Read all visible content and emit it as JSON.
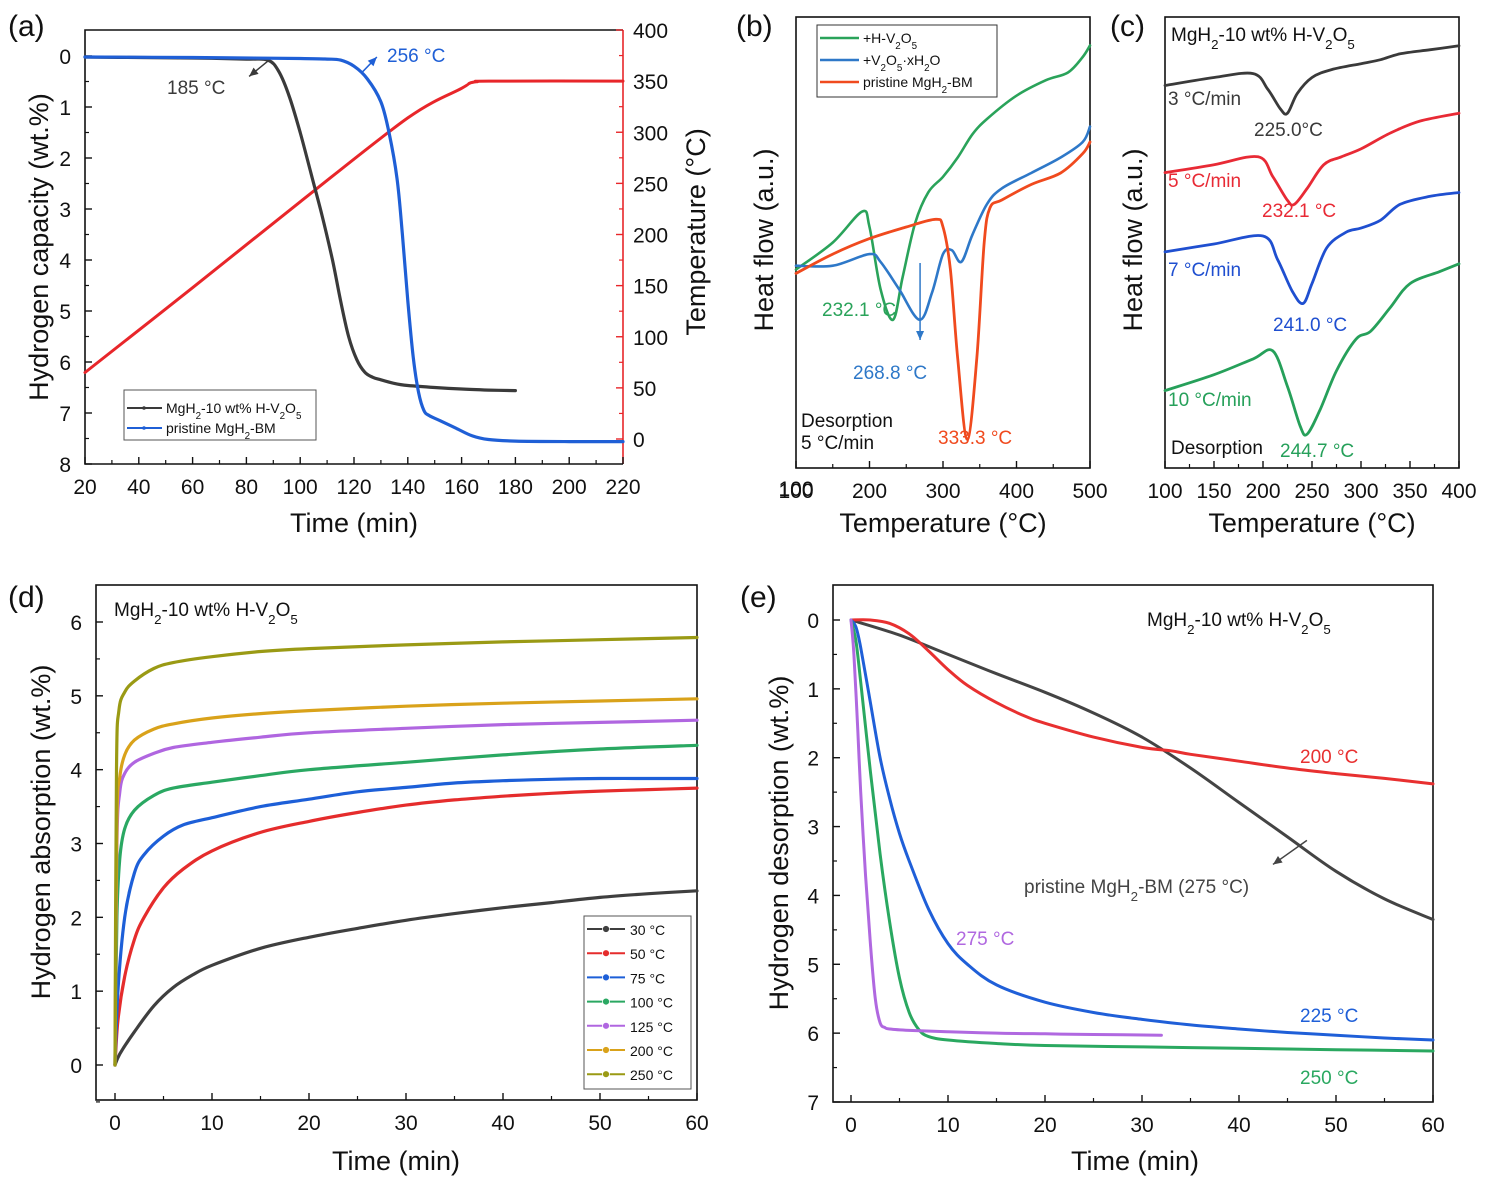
{
  "chart_data": [
    {
      "id": "a",
      "panel_label": "(a)",
      "type": "line",
      "xlabel": "Time (min)",
      "ylabel": "Hydrogen capacity (wt.%)",
      "y2label": "Temperature (°C)",
      "xlim": [
        20,
        220
      ],
      "ylim": [
        8,
        0
      ],
      "y_inverted": true,
      "y2lim": [
        0,
        400
      ],
      "xticks": [
        20,
        40,
        60,
        80,
        100,
        120,
        140,
        160,
        180,
        200,
        220
      ],
      "yticks": [
        0,
        1,
        2,
        3,
        4,
        5,
        6,
        7,
        8
      ],
      "y2ticks": [
        0,
        50,
        100,
        150,
        200,
        250,
        300,
        350,
        400
      ],
      "legend_position": "bottom-left",
      "series": [
        {
          "name": "MgH₂-10 wt% H-V₂O₅",
          "legend_main": "MgH",
          "legend_tail": "-10 wt% H-V",
          "color": "#3a3a3a",
          "axis": "left",
          "x": [
            20,
            40,
            60,
            80,
            88,
            92,
            96,
            100,
            104,
            108,
            112,
            115,
            118,
            121,
            124,
            127,
            130,
            135,
            140,
            150,
            160,
            170,
            180
          ],
          "y": [
            0.02,
            0.03,
            0.04,
            0.06,
            0.08,
            0.3,
            0.8,
            1.5,
            2.3,
            3.1,
            4.0,
            4.8,
            5.5,
            5.95,
            6.2,
            6.3,
            6.35,
            6.42,
            6.46,
            6.5,
            6.53,
            6.55,
            6.56
          ]
        },
        {
          "name": "pristine MgH₂-BM",
          "color": "#1f5fd6",
          "axis": "left",
          "x": [
            20,
            60,
            100,
            110,
            115,
            120,
            125,
            130,
            133,
            136,
            138,
            140,
            142,
            144,
            146,
            148,
            152,
            158,
            164,
            170,
            180,
            200,
            220
          ],
          "y": [
            0.02,
            0.03,
            0.05,
            0.06,
            0.08,
            0.2,
            0.45,
            0.9,
            1.5,
            2.4,
            3.5,
            4.8,
            5.9,
            6.6,
            6.95,
            7.05,
            7.15,
            7.3,
            7.45,
            7.52,
            7.55,
            7.56,
            7.56
          ]
        },
        {
          "name": "Temperature",
          "color": "#e8262a",
          "axis": "right",
          "x": [
            20,
            60,
            100,
            140,
            160,
            163,
            166,
            170,
            220
          ],
          "y": [
            65,
            148,
            232,
            314,
            343,
            348,
            349.5,
            350,
            350
          ]
        }
      ],
      "annotations": [
        {
          "text": "185 °C",
          "color": "#3a3a3a",
          "at": [
            88,
            0.08
          ]
        },
        {
          "text": "256 °C",
          "color": "#1f5fd6",
          "at": [
            122,
            0.25
          ]
        }
      ]
    },
    {
      "id": "b",
      "panel_label": "(b)",
      "type": "line",
      "xlabel": "Temperature (°C)",
      "ylabel": "Heat flow (a.u.)",
      "xlim": [
        100,
        500
      ],
      "xticks": [
        100,
        200,
        300,
        400,
        500
      ],
      "yticks": [],
      "legend_position": "top-left",
      "note_lines": [
        "Desorption",
        "5 °C/min"
      ],
      "series": [
        {
          "name": "+H-V₂O₅",
          "color": "#2aa35a",
          "x": [
            100,
            150,
            190,
            200,
            215,
            232,
            245,
            262,
            280,
            300,
            320,
            340,
            360,
            400,
            440,
            470,
            490,
            500
          ],
          "y": [
            48,
            55,
            63,
            59,
            43,
            35,
            46,
            60,
            68,
            72,
            77,
            83,
            87,
            93,
            97,
            99,
            103,
            106
          ]
        },
        {
          "name": "+V₂O₅·xH₂O",
          "color": "#2e78c8",
          "x": [
            100,
            150,
            200,
            215,
            240,
            268,
            285,
            300,
            312,
            325,
            340,
            360,
            380,
            420,
            460,
            490,
            500
          ],
          "y": [
            49,
            49,
            52,
            50,
            43,
            35,
            42,
            52,
            53,
            50,
            57,
            65,
            69,
            73,
            77,
            81,
            85
          ]
        },
        {
          "name": "pristine MgH₂-BM",
          "color": "#f04a1e",
          "x": [
            100,
            150,
            200,
            250,
            290,
            300,
            310,
            320,
            333,
            346,
            356,
            364,
            380,
            420,
            460,
            490,
            500
          ],
          "y": [
            47,
            52,
            56,
            59,
            61,
            59,
            48,
            25,
            4,
            25,
            55,
            64,
            66,
            70,
            73,
            78,
            81
          ]
        }
      ],
      "annotations": [
        {
          "text": "232.1 °C",
          "color": "#2aa35a"
        },
        {
          "text": "268.8 °C",
          "color": "#2e78c8"
        },
        {
          "text": "333.3 °C",
          "color": "#f04a1e"
        }
      ]
    },
    {
      "id": "c",
      "panel_label": "(c)",
      "type": "line",
      "title": "MgH₂-10 wt% H-V₂O₅",
      "xlabel": "Temperature (°C)",
      "ylabel": "Heat flow (a.u.)",
      "xlim": [
        100,
        400
      ],
      "xticks": [
        100,
        150,
        200,
        250,
        300,
        350,
        400
      ],
      "yticks": [],
      "note_lines": [
        "Desorption"
      ],
      "series": [
        {
          "name": "3 °C/min",
          "color": "#3a3a3a",
          "peak_label": "225.0°C",
          "x": [
            100,
            150,
            190,
            205,
            218,
            225,
            235,
            250,
            270,
            300,
            320,
            340,
            370,
            400
          ],
          "y": [
            92,
            94,
            95,
            91,
            86,
            85,
            90,
            94,
            96,
            97.5,
            98.5,
            100,
            101,
            102
          ]
        },
        {
          "name": "5 °C/min",
          "color": "#e82a35",
          "peak_label": "232.1 °C",
          "x": [
            100,
            150,
            195,
            210,
            225,
            232,
            245,
            262,
            280,
            300,
            330,
            360,
            400
          ],
          "y": [
            70,
            72,
            74,
            69,
            63,
            62,
            66,
            72,
            74,
            76,
            80,
            83,
            85
          ]
        },
        {
          "name": "7 °C/min",
          "color": "#1f4fd0",
          "peak_label": "241.0 °C",
          "x": [
            100,
            150,
            200,
            215,
            230,
            241,
            250,
            265,
            285,
            300,
            320,
            340,
            370,
            400
          ],
          "y": [
            50,
            52,
            54,
            48,
            40,
            37,
            42,
            51,
            55,
            56,
            58,
            62,
            64,
            65
          ]
        },
        {
          "name": "10 °C/min",
          "color": "#26a05a",
          "peak_label": "244.7 °C",
          "x": [
            100,
            150,
            190,
            210,
            225,
            238,
            245,
            258,
            275,
            295,
            310,
            330,
            350,
            380,
            400
          ],
          "y": [
            15,
            19,
            23,
            25,
            16,
            6,
            4,
            10,
            20,
            28,
            30,
            36,
            42,
            45,
            47
          ]
        }
      ]
    },
    {
      "id": "d",
      "panel_label": "(d)",
      "type": "line",
      "title": "MgH₂-10 wt% H-V₂O₅",
      "xlabel": "Time (min)",
      "ylabel": "Hydrogen absorption (wt.%)",
      "xlim": [
        -2,
        60
      ],
      "ylim": [
        -0.5,
        6.5
      ],
      "xticks": [
        0,
        10,
        20,
        30,
        40,
        50,
        60
      ],
      "yticks": [
        0,
        1,
        2,
        3,
        4,
        5,
        6
      ],
      "legend_position": "bottom-right",
      "series": [
        {
          "name": "30 °C",
          "color": "#3f3f3f",
          "x": [
            0,
            0.5,
            2,
            4,
            6,
            8,
            10,
            15,
            20,
            25,
            30,
            35,
            40,
            45,
            50,
            55,
            60
          ],
          "y": [
            0,
            0.15,
            0.45,
            0.8,
            1.05,
            1.22,
            1.35,
            1.58,
            1.73,
            1.85,
            1.96,
            2.05,
            2.13,
            2.2,
            2.27,
            2.32,
            2.36
          ]
        },
        {
          "name": "50 °C",
          "color": "#e52c2c",
          "x": [
            0,
            0.3,
            1,
            2,
            3,
            5,
            7,
            10,
            15,
            20,
            25,
            30,
            35,
            40,
            45,
            50,
            55,
            60
          ],
          "y": [
            0,
            0.6,
            1.2,
            1.7,
            2.0,
            2.4,
            2.65,
            2.9,
            3.15,
            3.3,
            3.42,
            3.52,
            3.59,
            3.64,
            3.68,
            3.71,
            3.73,
            3.75
          ]
        },
        {
          "name": "75 °C",
          "color": "#1d5fd8",
          "x": [
            0,
            0.3,
            1,
            2,
            3,
            5,
            7,
            10,
            15,
            20,
            25,
            30,
            35,
            40,
            45,
            50,
            55,
            60
          ],
          "y": [
            0,
            1.0,
            2.0,
            2.6,
            2.85,
            3.1,
            3.25,
            3.35,
            3.5,
            3.6,
            3.7,
            3.76,
            3.82,
            3.85,
            3.87,
            3.88,
            3.88,
            3.88
          ]
        },
        {
          "name": "100 °C",
          "color": "#2aa862",
          "x": [
            0,
            0.2,
            0.5,
            1,
            2,
            4,
            6,
            10,
            15,
            20,
            30,
            40,
            50,
            60
          ],
          "y": [
            0,
            2.0,
            2.8,
            3.2,
            3.45,
            3.65,
            3.75,
            3.83,
            3.92,
            4.0,
            4.1,
            4.2,
            4.28,
            4.33
          ]
        },
        {
          "name": "125 °C",
          "color": "#b066e0",
          "x": [
            0,
            0.2,
            0.5,
            1,
            2,
            4,
            6,
            10,
            15,
            20,
            30,
            40,
            50,
            60
          ],
          "y": [
            0,
            3.0,
            3.7,
            3.95,
            4.1,
            4.22,
            4.3,
            4.37,
            4.44,
            4.5,
            4.56,
            4.61,
            4.64,
            4.67
          ]
        },
        {
          "name": "200 °C",
          "color": "#d9a21a",
          "x": [
            0,
            0.2,
            0.5,
            1,
            2,
            4,
            6,
            10,
            15,
            20,
            30,
            40,
            50,
            60
          ],
          "y": [
            0,
            3.3,
            3.9,
            4.2,
            4.4,
            4.55,
            4.62,
            4.7,
            4.76,
            4.8,
            4.86,
            4.9,
            4.93,
            4.96
          ]
        },
        {
          "name": "250 °C",
          "color": "#9a9a14",
          "x": [
            0,
            0.15,
            0.4,
            1,
            2,
            4,
            6,
            10,
            15,
            20,
            30,
            40,
            50,
            60
          ],
          "y": [
            0,
            4.0,
            4.8,
            5.05,
            5.2,
            5.37,
            5.45,
            5.53,
            5.6,
            5.64,
            5.69,
            5.73,
            5.76,
            5.79
          ]
        }
      ]
    },
    {
      "id": "e",
      "panel_label": "(e)",
      "type": "line",
      "title": "MgH₂-10 wt% H-V₂O₅",
      "xlabel": "Time (min)",
      "ylabel": "Hydrogen desorption (wt.%)",
      "xlim": [
        -2,
        60
      ],
      "ylim": [
        7,
        -0.5
      ],
      "y_inverted": true,
      "xticks": [
        0,
        10,
        20,
        30,
        40,
        50,
        60
      ],
      "yticks": [
        0,
        1,
        2,
        3,
        4,
        5,
        6,
        7
      ],
      "series": [
        {
          "name": "200 °C",
          "color": "#e83030",
          "label": "200 °C",
          "x": [
            0,
            2,
            4,
            6,
            8,
            10,
            12,
            15,
            18,
            20,
            25,
            30,
            33,
            35,
            40,
            45,
            50,
            55,
            60
          ],
          "y": [
            0,
            0.0,
            0.05,
            0.2,
            0.45,
            0.72,
            0.95,
            1.2,
            1.4,
            1.5,
            1.7,
            1.85,
            1.9,
            1.95,
            2.05,
            2.15,
            2.23,
            2.3,
            2.38
          ]
        },
        {
          "name": "225 °C",
          "color": "#1f5fd8",
          "label": "225 °C",
          "x": [
            0,
            0.5,
            1,
            2,
            3,
            4,
            5,
            6,
            8,
            10,
            12,
            15,
            20,
            25,
            30,
            35,
            40,
            45,
            50,
            55,
            60
          ],
          "y": [
            0,
            0.1,
            0.4,
            1.2,
            2.0,
            2.6,
            3.1,
            3.5,
            4.2,
            4.7,
            5.0,
            5.3,
            5.55,
            5.7,
            5.8,
            5.88,
            5.94,
            5.99,
            6.03,
            6.07,
            6.1
          ]
        },
        {
          "name": "250 °C",
          "color": "#2aa860",
          "label": "250 °C",
          "x": [
            0,
            0.5,
            1,
            2,
            3,
            4,
            5,
            6,
            7,
            8,
            10,
            15,
            20,
            30,
            40,
            50,
            60
          ],
          "y": [
            0,
            0.3,
            0.9,
            2.2,
            3.4,
            4.4,
            5.2,
            5.7,
            5.95,
            6.05,
            6.1,
            6.15,
            6.18,
            6.2,
            6.22,
            6.24,
            6.26
          ]
        },
        {
          "name": "275 °C",
          "color": "#b068e0",
          "label": "275 °C",
          "x": [
            0,
            0.3,
            0.7,
            1,
            1.5,
            2,
            2.5,
            3,
            3.5,
            4,
            6,
            10,
            15,
            20,
            25,
            32
          ],
          "y": [
            0,
            0.5,
            1.6,
            2.5,
            3.7,
            4.7,
            5.5,
            5.85,
            5.92,
            5.94,
            5.96,
            5.98,
            6.0,
            6.01,
            6.02,
            6.03
          ]
        },
        {
          "name": "pristine MgH₂-BM (275 °C)",
          "color": "#444444",
          "label": "pristine MgH₂-BM (275 °C)",
          "x": [
            0,
            5,
            10,
            15,
            20,
            25,
            30,
            35,
            40,
            45,
            50,
            55,
            60
          ],
          "y": [
            0,
            0.22,
            0.5,
            0.78,
            1.05,
            1.35,
            1.7,
            2.15,
            2.65,
            3.15,
            3.65,
            4.05,
            4.35
          ]
        }
      ]
    }
  ]
}
